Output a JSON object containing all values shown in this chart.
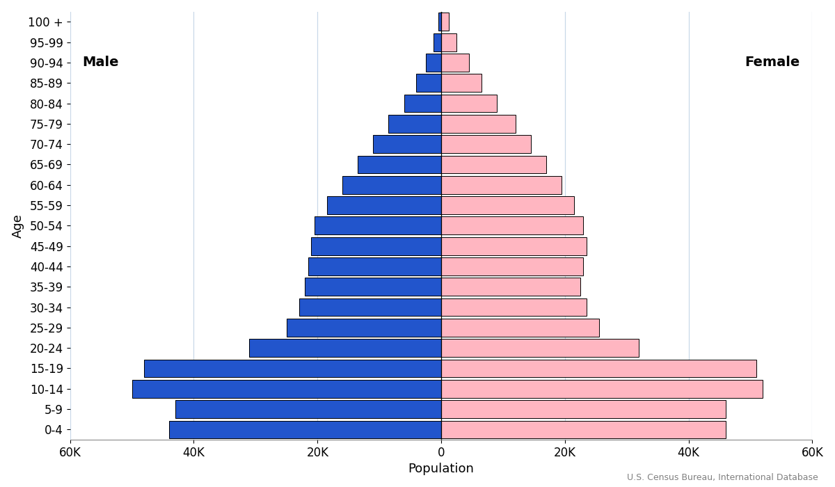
{
  "age_groups": [
    "0-4",
    "5-9",
    "10-14",
    "15-19",
    "20-24",
    "25-29",
    "30-34",
    "35-39",
    "40-44",
    "45-49",
    "50-54",
    "55-59",
    "60-64",
    "65-69",
    "70-74",
    "75-79",
    "80-84",
    "85-89",
    "90-94",
    "95-99",
    "100 +"
  ],
  "male": [
    44000,
    43000,
    50000,
    48000,
    31000,
    25000,
    23000,
    22000,
    21500,
    21000,
    20500,
    18500,
    16000,
    13500,
    11000,
    8500,
    6000,
    4000,
    2500,
    1200,
    500
  ],
  "female": [
    46000,
    46000,
    52000,
    51000,
    32000,
    25500,
    23500,
    22500,
    23000,
    23500,
    23000,
    21500,
    19500,
    17000,
    14500,
    12000,
    9000,
    6500,
    4500,
    2500,
    1200
  ],
  "male_color": "#2255CC",
  "female_color": "#FFB6C1",
  "bar_edge_color": "#000000",
  "bar_linewidth": 0.7,
  "background_color": "#FFFFFF",
  "xlabel": "Population",
  "ylabel": "Age",
  "xlim": 60000,
  "xtick_labels": [
    "60K",
    "40K",
    "20K",
    "0",
    "20K",
    "40K",
    "60K"
  ],
  "xtick_vals": [
    -60000,
    -40000,
    -20000,
    0,
    20000,
    40000,
    60000
  ],
  "male_label": "Male",
  "female_label": "Female",
  "source_text": "U.S. Census Bureau, International Database",
  "grid_color": "#C8D8E8",
  "label_fontsize": 13,
  "tick_fontsize": 12,
  "annotation_fontsize": 14
}
